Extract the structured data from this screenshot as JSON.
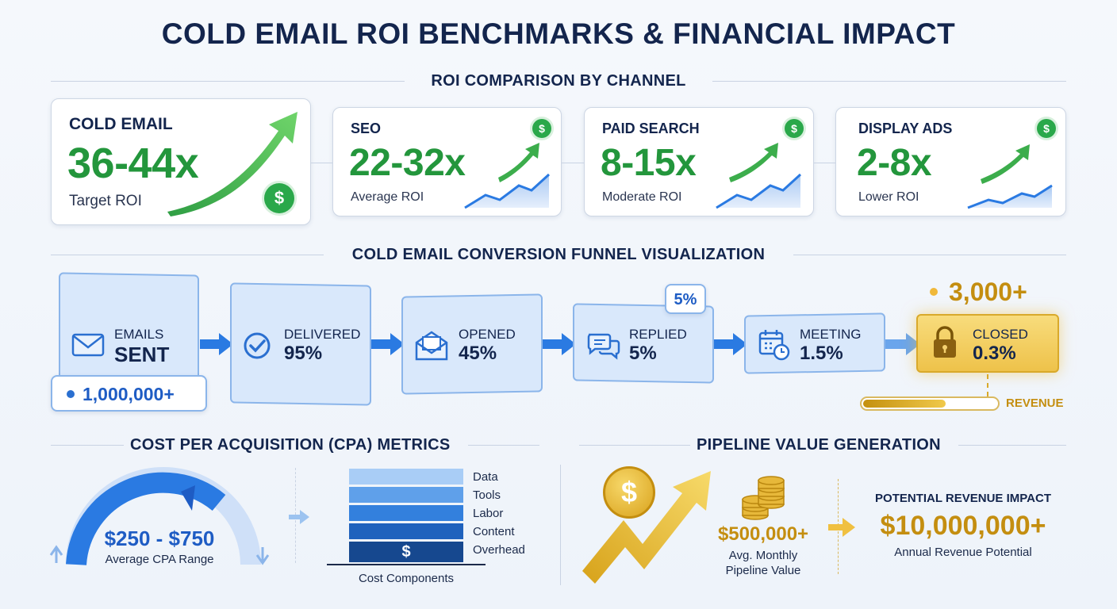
{
  "title": "COLD EMAIL ROI BENCHMARKS & FINANCIAL IMPACT",
  "roi_section": {
    "title": "ROI COMPARISON BY CHANNEL",
    "cards": [
      {
        "name": "COLD EMAIL",
        "value": "36-44x",
        "label": "Target ROI",
        "icon": "dollar-icon"
      },
      {
        "name": "SEO",
        "value": "22-32x",
        "label": "Average ROI",
        "icon": "dollar-icon"
      },
      {
        "name": "PAID SEARCH",
        "value": "8-15x",
        "label": "Moderate ROI",
        "icon": "dollar-icon"
      },
      {
        "name": "DISPLAY ADS",
        "value": "2-8x",
        "label": "Lower ROI",
        "icon": "dollar-icon"
      }
    ],
    "dollar_symbol": "$"
  },
  "funnel_section": {
    "title": "COLD EMAIL CONVERSION FUNNEL VISUALIZATION",
    "stages": [
      {
        "label": "EMAILS",
        "value": "SENT",
        "icon": "envelope-icon"
      },
      {
        "label": "DELIVERED",
        "value": "95%",
        "icon": "check-circle-icon"
      },
      {
        "label": "OPENED",
        "value": "45%",
        "icon": "open-envelope-icon"
      },
      {
        "label": "REPLIED",
        "value": "5%",
        "icon": "chat-bubbles-icon"
      },
      {
        "label": "MEETING",
        "value": "1.5%",
        "icon": "calendar-clock-icon"
      },
      {
        "label": "CLOSED",
        "value": "0.3%",
        "icon": "lock-icon"
      }
    ],
    "sent_count": "1,000,000+",
    "reply_callout": "5%",
    "closed_count": "3,000+",
    "revenue_label": "REVENUE",
    "revenue_progress": 0.62
  },
  "cpa_section": {
    "title": "COST PER ACQUISITION (CPA) METRICS",
    "range": "$250 - $750",
    "range_label": "Average CPA Range",
    "components": [
      "Data",
      "Tools",
      "Labor",
      "Content",
      "Overhead"
    ],
    "components_caption": "Cost Components",
    "stack_symbol": "$"
  },
  "pipeline_section": {
    "title": "PIPELINE VALUE GENERATION",
    "monthly_value": "$500,000+",
    "monthly_label_1": "Avg. Monthly",
    "monthly_label_2": "Pipeline Value",
    "impact_title": "POTENTIAL REVENUE IMPACT",
    "annual_value": "$10,000,000+",
    "annual_label": "Annual Revenue Potential",
    "coin_symbol": "$"
  },
  "colors": {
    "navy": "#13254d",
    "green": "#23963c",
    "blue": "#2a7ae2",
    "gold": "#c48e10"
  }
}
